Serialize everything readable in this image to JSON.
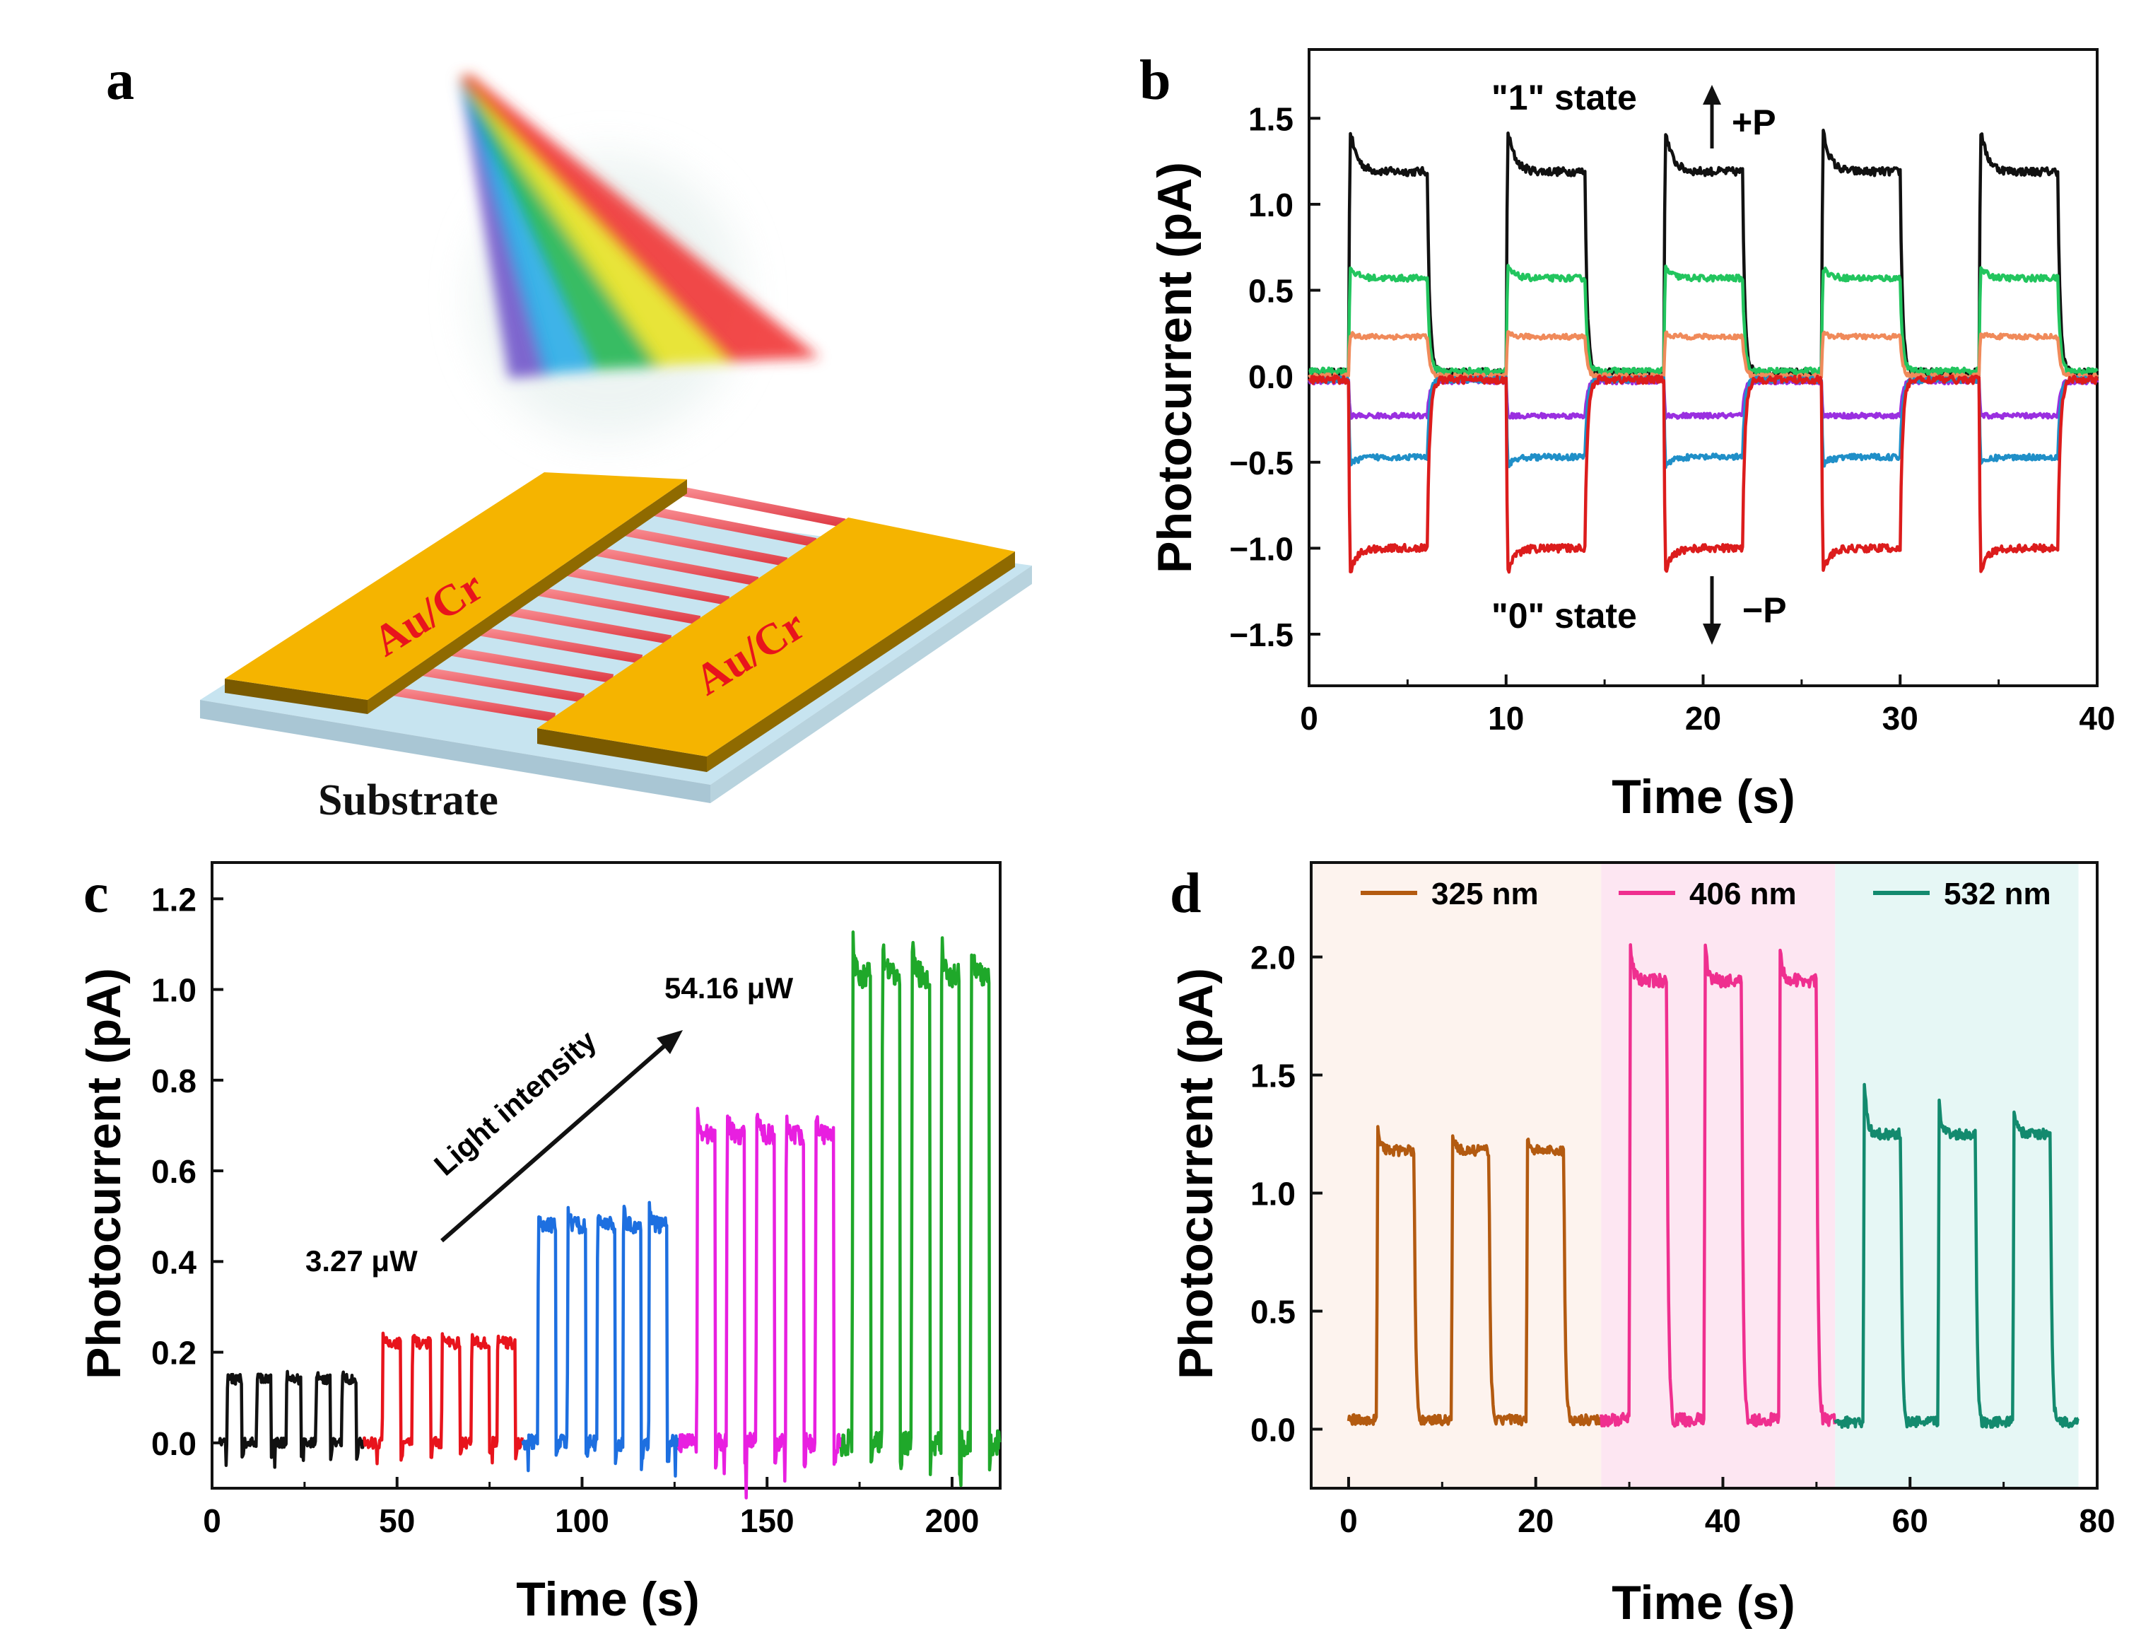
{
  "panel_labels": {
    "a": "a",
    "b": "b",
    "c": "c",
    "d": "d"
  },
  "schematic": {
    "electrode_left": "Au/Cr",
    "electrode_right": "Au/Cr",
    "substrate": "Substrate",
    "beam_colors": [
      "#6a4cc8",
      "#1fa8e6",
      "#16b34a",
      "#e8e21a",
      "#f02a2a"
    ],
    "electrode_color": "#f5b400",
    "channel_color": "#ef4f57"
  },
  "chart_data": [
    {
      "id": "b",
      "type": "line",
      "xlabel": "Time (s)",
      "ylabel": "Photocurrent (pA)",
      "xlim": [
        0,
        40
      ],
      "ylim": [
        -1.8,
        1.9
      ],
      "xticks": [
        0,
        10,
        20,
        30,
        40
      ],
      "yticks": [
        -1.5,
        -1.0,
        -0.5,
        0.0,
        0.5,
        1.0,
        1.5
      ],
      "ytick_labels": [
        "−1.5",
        "−1.0",
        "−0.5",
        "0.0",
        "0.5",
        "1.0",
        "1.5"
      ],
      "on_intervals": [
        [
          2,
          6
        ],
        [
          10,
          14
        ],
        [
          18,
          22
        ],
        [
          26,
          30
        ],
        [
          34,
          38
        ]
      ],
      "series": [
        {
          "name": "black",
          "color": "#111111",
          "baseline": 0.02,
          "plateau": 1.19,
          "peak": 1.5
        },
        {
          "name": "green",
          "color": "#22c55e",
          "baseline": 0.03,
          "plateau": 0.57,
          "peak": 0.65
        },
        {
          "name": "orange",
          "color": "#f08a5a",
          "baseline": 0.0,
          "plateau": 0.23,
          "peak": 0.25
        },
        {
          "name": "purple",
          "color": "#9a2fe0",
          "baseline": -0.03,
          "plateau": -0.23,
          "peak": -0.23
        },
        {
          "name": "blue",
          "color": "#1f8fc8",
          "baseline": -0.02,
          "plateau": -0.47,
          "peak": -0.53
        },
        {
          "name": "red",
          "color": "#dc1c1c",
          "baseline": -0.02,
          "plateau": -1.0,
          "peak": -1.18
        }
      ],
      "annotations": {
        "state1": "\"1\" state",
        "state0": "\"0\" state",
        "plus_p": "+P",
        "minus_p": "−P"
      }
    },
    {
      "id": "c",
      "type": "line",
      "xlabel": "Time (s)",
      "ylabel": "Photocurrent (pA)",
      "xlim": [
        0,
        213
      ],
      "ylim": [
        -0.1,
        1.28
      ],
      "xticks": [
        0,
        50,
        100,
        150,
        200
      ],
      "yticks": [
        0.0,
        0.2,
        0.4,
        0.6,
        0.8,
        1.0,
        1.2
      ],
      "ytick_labels": [
        "0.0",
        "0.2",
        "0.4",
        "0.6",
        "0.8",
        "1.0",
        "1.2"
      ],
      "series": [
        {
          "name": "3.27 µW",
          "color": "#111111",
          "range": [
            2,
            41
          ],
          "plateau": 0.14,
          "pulses": [
            [
              4,
              8
            ],
            [
              12,
              16
            ],
            [
              20,
              24
            ],
            [
              28,
              32
            ],
            [
              35,
              39
            ]
          ]
        },
        {
          "name": "red",
          "color": "#e8141c",
          "range": [
            41,
            84
          ],
          "plateau": 0.22,
          "pulses": [
            [
              46,
              51
            ],
            [
              54,
              59
            ],
            [
              62,
              67
            ],
            [
              70,
              75
            ],
            [
              77,
              82
            ]
          ]
        },
        {
          "name": "blue",
          "color": "#1d6fe0",
          "range": [
            84,
            126
          ],
          "plateau": 0.48,
          "pulses": [
            [
              88,
              93
            ],
            [
              96,
              101
            ],
            [
              104,
              109
            ],
            [
              111,
              116
            ],
            [
              118,
              123
            ]
          ]
        },
        {
          "name": "magenta",
          "color": "#e81fe0",
          "range": [
            126,
            170
          ],
          "plateau": 0.68,
          "pulses": [
            [
              131,
              136
            ],
            [
              139,
              144
            ],
            [
              147,
              152
            ],
            [
              155,
              160
            ],
            [
              163,
              168
            ]
          ]
        },
        {
          "name": "54.16 µW",
          "color": "#1fa82a",
          "range": [
            170,
            213
          ],
          "plateau": 1.03,
          "pulses": [
            [
              173,
              178
            ],
            [
              181,
              186
            ],
            [
              189,
              194
            ],
            [
              197,
              202
            ],
            [
              205,
              210
            ]
          ]
        }
      ],
      "annotations": {
        "low": "3.27 μW",
        "high": "54.16 μW",
        "arrow_label": "Light intensity"
      }
    },
    {
      "id": "d",
      "type": "line",
      "xlabel": "Time (s)",
      "ylabel": "Photocurrent (pA)",
      "xlim": [
        -4,
        80
      ],
      "ylim": [
        -0.25,
        2.4
      ],
      "xticks": [
        0,
        20,
        40,
        60,
        80
      ],
      "yticks": [
        0.0,
        0.5,
        1.0,
        1.5,
        2.0
      ],
      "ytick_labels": [
        "0.0",
        "0.5",
        "1.0",
        "1.5",
        "2.0"
      ],
      "series": [
        {
          "name": "325 nm",
          "color": "#b35a10",
          "bg": "#fdf3ee",
          "range": [
            0,
            27
          ],
          "base": 0.04,
          "plateau": 1.18,
          "pulses": [
            [
              3,
              7
            ],
            [
              11,
              15
            ],
            [
              19,
              23
            ]
          ],
          "peaks": [
            1.31,
            1.29,
            1.26
          ]
        },
        {
          "name": "406 nm",
          "color": "#ef2f8f",
          "bg": "#fde6f2",
          "range": [
            27,
            52
          ],
          "base": 0.04,
          "plateau": 1.9,
          "pulses": [
            [
              30,
              34
            ],
            [
              38,
              42
            ],
            [
              46,
              50
            ]
          ],
          "peaks": [
            2.11,
            2.1,
            2.09
          ]
        },
        {
          "name": "532 nm",
          "color": "#138a6e",
          "bg": "#e6f7f5",
          "range": [
            52,
            78
          ],
          "base": 0.03,
          "plateau": 1.25,
          "pulses": [
            [
              55,
              59
            ],
            [
              63,
              67
            ],
            [
              71,
              75
            ]
          ],
          "peaks": [
            1.56,
            1.45,
            1.42
          ]
        }
      ],
      "legend_location": "top"
    }
  ]
}
